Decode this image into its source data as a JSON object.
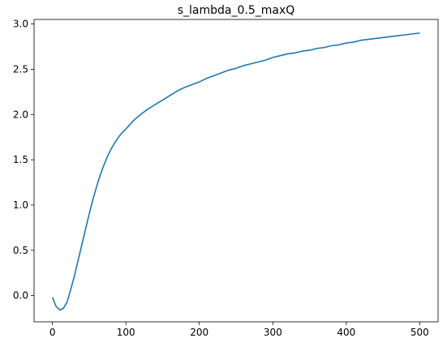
{
  "chart_data": {
    "type": "line",
    "title": "s_lambda_0.5_maxQ",
    "xlabel": "",
    "ylabel": "",
    "xlim": [
      -25,
      525
    ],
    "ylim": [
      -0.29,
      3.05
    ],
    "x_ticks": [
      0,
      100,
      200,
      300,
      400,
      500
    ],
    "y_ticks": [
      0.0,
      0.5,
      1.0,
      1.5,
      2.0,
      2.5,
      3.0
    ],
    "x_tick_labels": [
      "0",
      "100",
      "200",
      "300",
      "400",
      "500"
    ],
    "y_tick_labels": [
      "0.0",
      "0.5",
      "1.0",
      "1.5",
      "2.0",
      "2.5",
      "3.0"
    ],
    "grid": false,
    "series": [
      {
        "color": "#1f77b4",
        "x": [
          0,
          5,
          10,
          15,
          20,
          25,
          30,
          35,
          40,
          45,
          50,
          55,
          60,
          65,
          70,
          75,
          80,
          85,
          90,
          95,
          100,
          110,
          120,
          130,
          140,
          150,
          160,
          170,
          180,
          190,
          200,
          210,
          220,
          230,
          240,
          250,
          260,
          270,
          280,
          290,
          300,
          310,
          320,
          330,
          340,
          350,
          360,
          370,
          380,
          390,
          400,
          410,
          420,
          430,
          440,
          450,
          460,
          470,
          480,
          490,
          500
        ],
        "y": [
          -0.02,
          -0.12,
          -0.16,
          -0.14,
          -0.07,
          0.07,
          0.22,
          0.39,
          0.56,
          0.73,
          0.9,
          1.06,
          1.2,
          1.33,
          1.44,
          1.54,
          1.62,
          1.69,
          1.75,
          1.8,
          1.84,
          1.93,
          2.0,
          2.06,
          2.11,
          2.16,
          2.21,
          2.26,
          2.3,
          2.33,
          2.36,
          2.4,
          2.43,
          2.46,
          2.49,
          2.51,
          2.54,
          2.56,
          2.58,
          2.6,
          2.63,
          2.65,
          2.67,
          2.68,
          2.7,
          2.71,
          2.73,
          2.74,
          2.76,
          2.77,
          2.79,
          2.8,
          2.82,
          2.83,
          2.84,
          2.85,
          2.86,
          2.87,
          2.88,
          2.89,
          2.9
        ]
      }
    ]
  }
}
